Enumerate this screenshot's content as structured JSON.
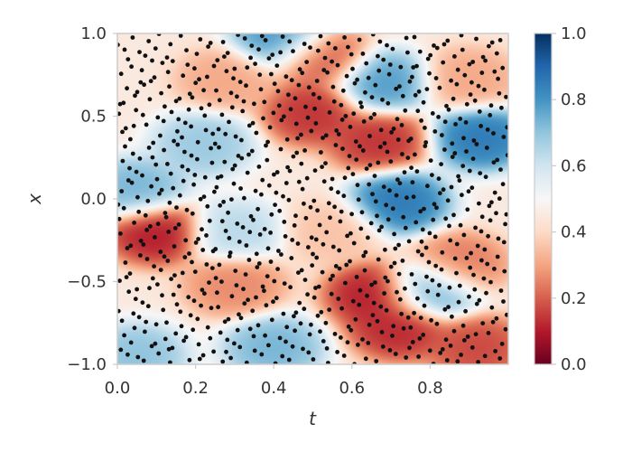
{
  "chart_data": {
    "type": "heatmap",
    "title": "",
    "xlabel": "t",
    "ylabel": "x",
    "xlim": [
      0.0,
      1.0
    ],
    "ylim": [
      -1.0,
      1.0
    ],
    "grid": false,
    "x_ticks": [
      "0.0",
      "0.2",
      "0.4",
      "0.6",
      "0.8"
    ],
    "x_tick_values": [
      0.0,
      0.2,
      0.4,
      0.6,
      0.8
    ],
    "y_ticks": [
      "−1.0",
      "−0.5",
      "0.0",
      "0.5",
      "1.0"
    ],
    "y_tick_values": [
      -1.0,
      -0.5,
      0.0,
      0.5,
      1.0
    ],
    "colormap": "RdBu",
    "color_range": [
      0.0,
      1.0
    ],
    "colorbar_ticks": [
      "0.0",
      "0.2",
      "0.4",
      "0.6",
      "0.8",
      "1.0"
    ],
    "colorbar_tick_values": [
      0.0,
      0.2,
      0.4,
      0.6,
      0.8,
      1.0
    ],
    "colormap_stops": [
      {
        "v": 0.0,
        "c": "#67001f"
      },
      {
        "v": 0.1,
        "c": "#b2182b"
      },
      {
        "v": 0.2,
        "c": "#d6604d"
      },
      {
        "v": 0.3,
        "c": "#f4a582"
      },
      {
        "v": 0.4,
        "c": "#fddbc7"
      },
      {
        "v": 0.5,
        "c": "#f7f7f7"
      },
      {
        "v": 0.6,
        "c": "#d1e5f0"
      },
      {
        "v": 0.7,
        "c": "#92c5de"
      },
      {
        "v": 0.8,
        "c": "#4393c3"
      },
      {
        "v": 0.9,
        "c": "#2166ac"
      },
      {
        "v": 1.0,
        "c": "#053061"
      }
    ],
    "field_features": [
      {
        "t": 0.1,
        "x": -0.2,
        "value": 0.08
      },
      {
        "t": 0.5,
        "x": 0.52,
        "value": 0.12
      },
      {
        "t": 0.66,
        "x": -0.58,
        "value": 0.08
      },
      {
        "t": 0.72,
        "x": -0.78,
        "value": 0.1
      },
      {
        "t": 0.67,
        "x": 0.35,
        "value": 0.12
      },
      {
        "t": 0.52,
        "x": 0.85,
        "value": 0.18
      },
      {
        "t": 0.28,
        "x": 0.72,
        "value": 0.3
      },
      {
        "t": 0.3,
        "x": -0.52,
        "value": 0.25
      },
      {
        "t": 0.92,
        "x": -0.9,
        "value": 0.15
      },
      {
        "t": 0.9,
        "x": 0.72,
        "value": 0.3
      },
      {
        "t": 0.87,
        "x": -0.4,
        "value": 0.22
      },
      {
        "t": 0.55,
        "x": -0.2,
        "value": 0.35
      },
      {
        "t": 0.72,
        "x": -0.02,
        "value": 0.88
      },
      {
        "t": 0.93,
        "x": 0.37,
        "value": 0.88
      },
      {
        "t": 0.05,
        "x": 0.05,
        "value": 0.75
      },
      {
        "t": 0.68,
        "x": 0.7,
        "value": 0.8
      },
      {
        "t": 0.42,
        "x": 0.97,
        "value": 0.82
      },
      {
        "t": 0.8,
        "x": -0.55,
        "value": 0.78
      },
      {
        "t": 0.22,
        "x": 0.33,
        "value": 0.7
      },
      {
        "t": 0.4,
        "x": -0.9,
        "value": 0.75
      },
      {
        "t": 0.05,
        "x": -0.95,
        "value": 0.72
      },
      {
        "t": 0.3,
        "x": -0.2,
        "value": 0.65
      }
    ],
    "sample_points_visible": 900,
    "marker_color": "#111111"
  }
}
